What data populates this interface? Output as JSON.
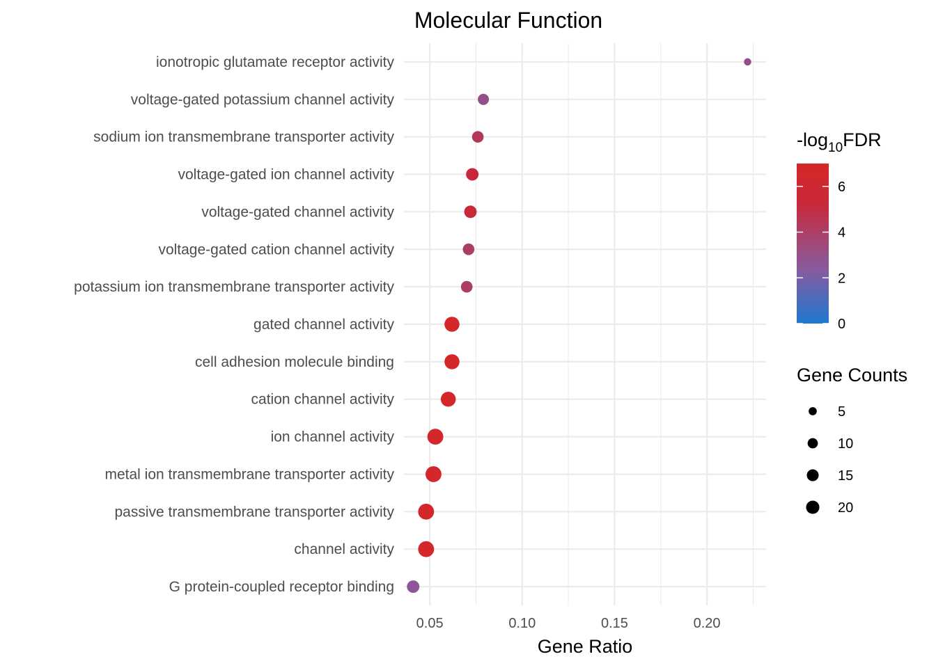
{
  "chart_data": {
    "type": "scatter",
    "title": "Molecular Function",
    "xlabel": "Gene Ratio",
    "ylabel": "",
    "xlim": [
      0.036,
      0.232
    ],
    "x_ticks": [
      0.05,
      0.1,
      0.15,
      0.2
    ],
    "x_tick_labels": [
      "0.05",
      "0.10",
      "0.15",
      "0.20"
    ],
    "grid": true,
    "categories": [
      "ionotropic glutamate receptor activity",
      "voltage-gated potassium channel activity",
      "sodium ion transmembrane transporter activity",
      "voltage-gated ion channel activity",
      "voltage-gated channel activity",
      "voltage-gated cation channel activity",
      "potassium ion transmembrane transporter activity",
      "gated channel activity",
      "cell adhesion molecule binding",
      "cation channel activity",
      "ion channel activity",
      "metal ion transmembrane transporter activity",
      "passive transmembrane transporter activity",
      "channel activity",
      "G protein-coupled receptor binding"
    ],
    "x": [
      0.222,
      0.079,
      0.076,
      0.073,
      0.072,
      0.071,
      0.07,
      0.062,
      0.062,
      0.06,
      0.053,
      0.052,
      0.048,
      0.048,
      0.041
    ],
    "gene_counts": [
      2,
      8,
      9,
      11,
      11,
      9,
      9,
      18,
      18,
      18,
      21,
      21,
      21,
      21,
      11
    ],
    "neg_log10_fdr": [
      3.0,
      3.0,
      4.3,
      5.3,
      5.3,
      4.0,
      4.0,
      6.8,
      6.8,
      6.8,
      6.7,
      6.7,
      6.7,
      6.7,
      2.6
    ],
    "color_legend": {
      "title_prefix": "-log",
      "title_sub": "10",
      "title_suffix": "FDR",
      "min": 0,
      "max": 7,
      "ticks": [
        0,
        2,
        4,
        6
      ],
      "tick_labels": [
        "0",
        "2",
        "4",
        "6"
      ],
      "colors": [
        "#1f78d1",
        "#8a5a9c",
        "#c8283a",
        "#d62728"
      ],
      "placement": "right"
    },
    "size_legend": {
      "title": "Gene Counts",
      "values": [
        5,
        10,
        15,
        20
      ],
      "labels": [
        "5",
        "10",
        "15",
        "20"
      ],
      "placement": "right"
    }
  }
}
